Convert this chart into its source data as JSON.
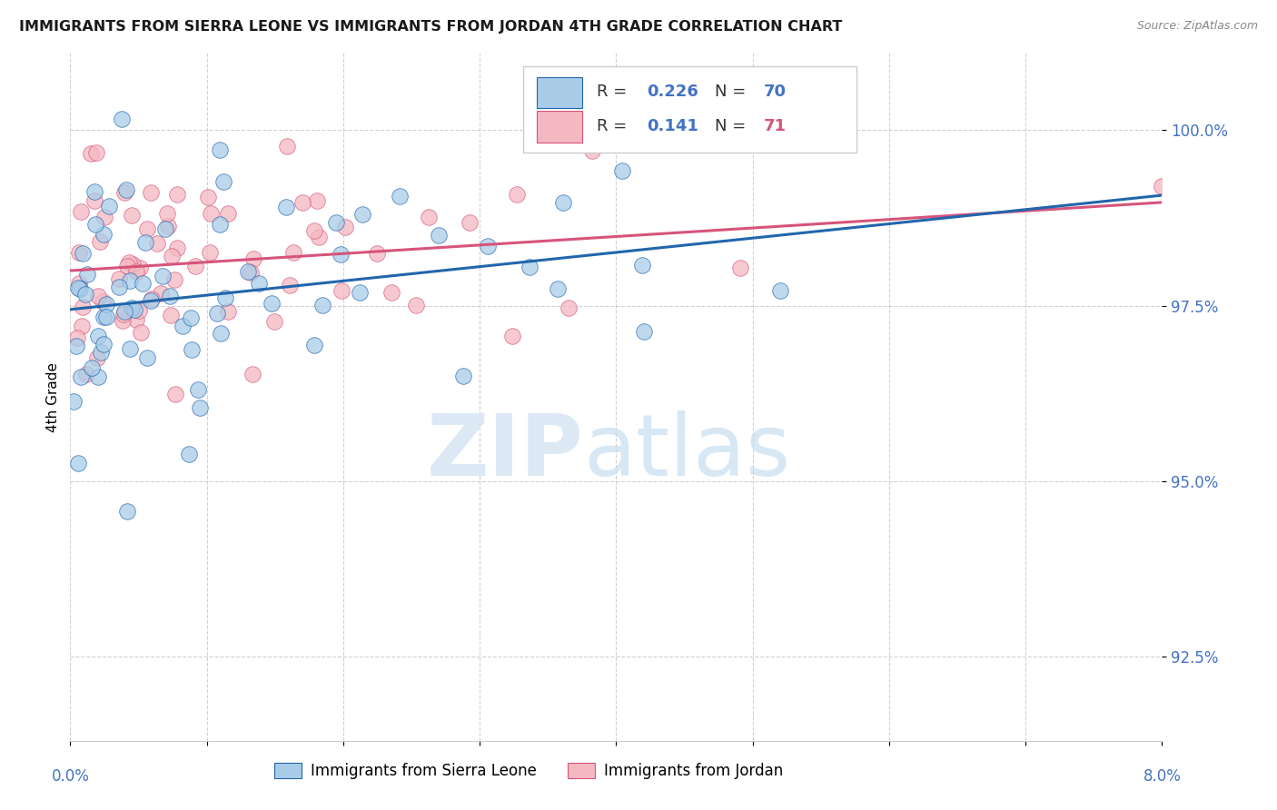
{
  "title": "IMMIGRANTS FROM SIERRA LEONE VS IMMIGRANTS FROM JORDAN 4TH GRADE CORRELATION CHART",
  "source": "Source: ZipAtlas.com",
  "ylabel": "4th Grade",
  "y_ticks": [
    92.5,
    95.0,
    97.5,
    100.0
  ],
  "y_tick_labels": [
    "92.5%",
    "95.0%",
    "97.5%",
    "100.0%"
  ],
  "x_min": 0.0,
  "x_max": 8.0,
  "y_min": 91.3,
  "y_max": 101.1,
  "legend1_label": "Immigrants from Sierra Leone",
  "legend2_label": "Immigrants from Jordan",
  "R_sierra": 0.226,
  "N_sierra": 70,
  "R_jordan": 0.141,
  "N_jordan": 71,
  "color_sierra": "#a8cce8",
  "color_jordan": "#f4b8c1",
  "trendline_sierra": "#2166ac",
  "trendline_jordan": "#d6547a",
  "watermark_zip": "ZIP",
  "watermark_atlas": "atlas",
  "bg_color": "#ffffff",
  "grid_color": "#cccccc",
  "ytick_color": "#4472c4",
  "title_fontsize": 11.5,
  "source_fontsize": 9
}
